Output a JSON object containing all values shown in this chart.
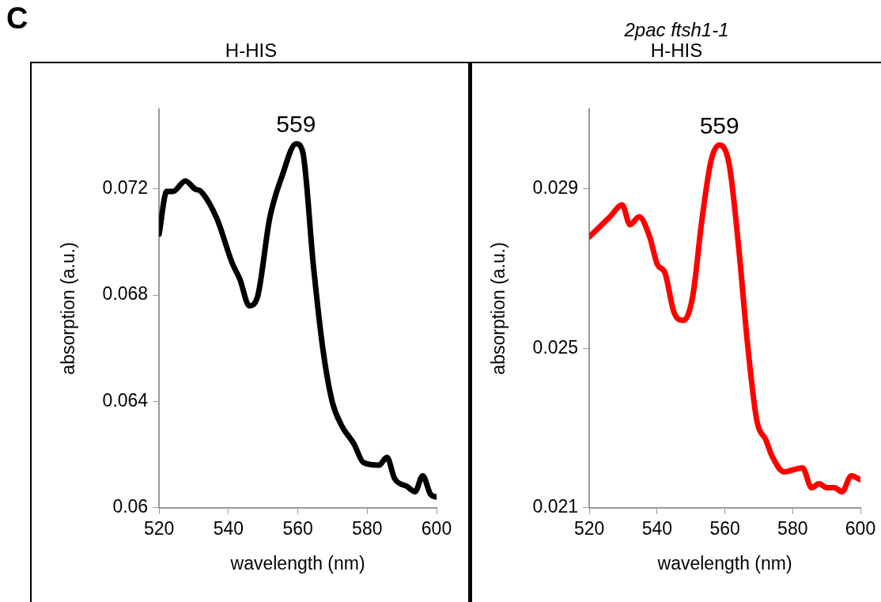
{
  "chart_data": [
    {
      "type": "line",
      "title": "H-HIS",
      "xlabel": "wavelength (nm)",
      "ylabel": "absorption (a.u.)",
      "xlim": [
        520,
        600
      ],
      "xticks": [
        520,
        540,
        560,
        580,
        600
      ],
      "ylim": [
        0.06,
        0.075
      ],
      "yticks": [
        0.06,
        0.064,
        0.068,
        0.072
      ],
      "annotations": [
        "C",
        {
          "text": "559",
          "x": 559.5,
          "y": 0.0737
        }
      ],
      "x": [
        520,
        522.2,
        524,
        527.6,
        530.3,
        532.1,
        536.6,
        541.1,
        543.3,
        546,
        548.3,
        551.9,
        555.5,
        559.5,
        561.4,
        564.5,
        567.2,
        569.9,
        572.6,
        576.2,
        578.9,
        583.4,
        585.7,
        587.9,
        591.5,
        593.8,
        596,
        598.3,
        600
      ],
      "series": [
        {
          "color": "#000000",
          "values": [
            0.0703,
            0.0719,
            0.0719,
            0.0723,
            0.072,
            0.0719,
            0.0709,
            0.0692,
            0.0686,
            0.0676,
            0.0679,
            0.0709,
            0.0725,
            0.0737,
            0.0734,
            0.0691,
            0.066,
            0.064,
            0.0631,
            0.0624,
            0.0617,
            0.0616,
            0.0619,
            0.0611,
            0.0608,
            0.0606,
            0.0612,
            0.0605,
            0.0604
          ]
        }
      ]
    },
    {
      "type": "line",
      "title": "2pac ftsh1-1",
      "subtitle": "H-HIS",
      "xlabel": "wavelength (nm)",
      "ylabel": "absorption (a.u.)",
      "xlim": [
        520,
        600
      ],
      "xticks": [
        520,
        540,
        560,
        580,
        600
      ],
      "ylim": [
        0.021,
        0.031
      ],
      "yticks": [
        0.021,
        0.025,
        0.029
      ],
      "annotations": [
        {
          "text": "559",
          "x": 558.4,
          "y": 0.0301
        }
      ],
      "x": [
        520,
        522.5,
        526.1,
        529.7,
        532,
        534.7,
        537.8,
        540.1,
        542.3,
        545,
        547.8,
        550.5,
        553.2,
        555.9,
        558.4,
        561.3,
        564,
        566.7,
        569.4,
        572.1,
        573.9,
        577.5,
        582.9,
        585.6,
        587.8,
        590.1,
        592.3,
        594.6,
        597.3,
        600
      ],
      "series": [
        {
          "color": "#ff0000",
          "values": [
            0.0278,
            0.028,
            0.0283,
            0.0286,
            0.0281,
            0.0283,
            0.0278,
            0.0271,
            0.0269,
            0.0259,
            0.0257,
            0.0263,
            0.0282,
            0.0297,
            0.0301,
            0.0296,
            0.0276,
            0.0251,
            0.0232,
            0.0227,
            0.0223,
            0.0219,
            0.022,
            0.0215,
            0.0216,
            0.0215,
            0.0215,
            0.0214,
            0.0218,
            0.0217
          ]
        }
      ]
    }
  ]
}
